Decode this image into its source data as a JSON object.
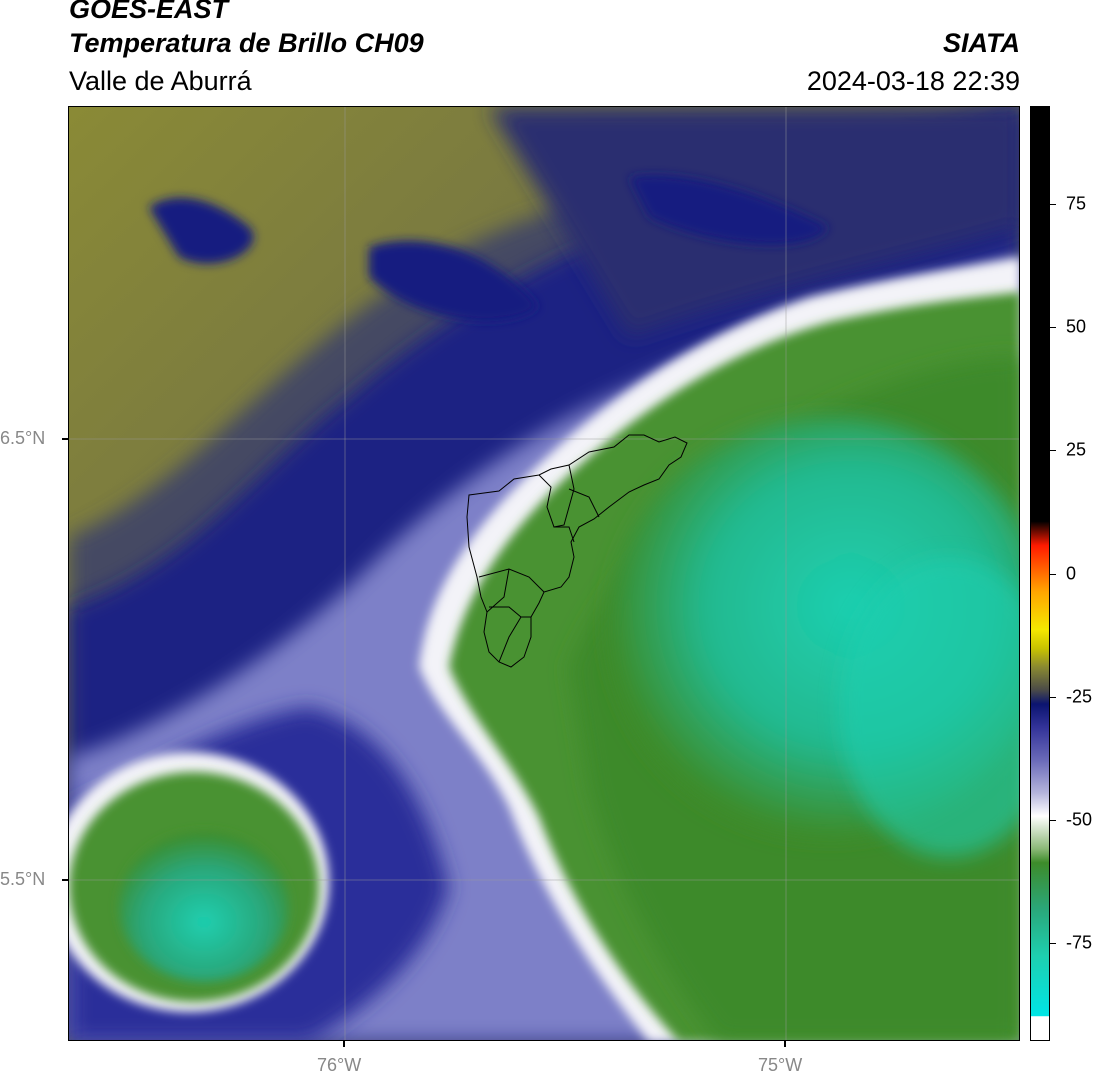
{
  "header": {
    "satellite": "GOES-EAST",
    "product": "Temperatura de Brillo CH09",
    "region": "Valle de Aburrá",
    "organization": "SIATA",
    "timestamp": "2024-03-18 22:39"
  },
  "map": {
    "lat_labels": [
      "6.5°N",
      "5.5°N"
    ],
    "lon_labels": [
      "76°W",
      "75°W"
    ]
  },
  "colorbar": {
    "tick_labels": [
      "75",
      "50",
      "25",
      "0",
      "-25",
      "-50",
      "-75"
    ],
    "tick_values": [
      75,
      50,
      25,
      0,
      -25,
      -50,
      -75
    ],
    "range": [
      -95,
      95
    ],
    "colors": {
      "cold": "#1ecfb0",
      "green": "#3d8c2a",
      "white": "#ffffff",
      "blue": "#2b2f8a",
      "navy": "#0b1470",
      "olive": "#8a8a30",
      "yellow": "#f4e800",
      "red": "#ff1a00",
      "black": "#000000"
    }
  }
}
